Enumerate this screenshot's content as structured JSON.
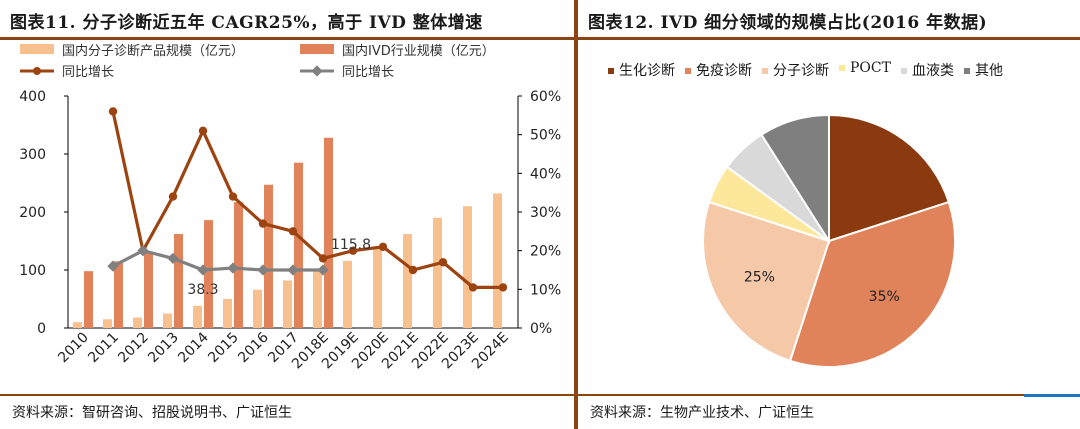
{
  "left": {
    "title": "图表11.  分子诊断近五年 CAGR25%，高于 IVD 整体增速",
    "source": "资料来源：智研咨询、招股说明书、广证恒生"
  },
  "right": {
    "title": "图表12.  IVD 细分领域的规模占比(2016 年数据)",
    "source": "资料来源：生物产业技术、广证恒生"
  },
  "colors": {
    "brand": "#8b4513",
    "accent": "#1f77c4",
    "bar_light": "#f8c08f",
    "bar_dark": "#e0835a",
    "line_brown": "#9c4310",
    "line_gray": "#808080"
  },
  "chart_data": [
    {
      "type": "bar",
      "categories": [
        "2010",
        "2011",
        "2012",
        "2013",
        "2014",
        "2015",
        "2016",
        "2017",
        "2018E",
        "2019E",
        "2020E",
        "2021E",
        "2022E",
        "2023E",
        "2024E"
      ],
      "series": [
        {
          "name": "国内分子诊断产品规模（亿元）",
          "kind": "bar",
          "axis": "left",
          "color": "#f8c08f",
          "values": [
            10,
            15,
            18,
            25,
            38.3,
            50,
            66,
            82,
            100,
            115.8,
            140,
            162,
            190,
            210,
            232
          ]
        },
        {
          "name": "国内IVD行业规模（亿元）",
          "kind": "bar",
          "axis": "left",
          "color": "#e0835a",
          "values": [
            98,
            115,
            130,
            162,
            186,
            217,
            247,
            285,
            328,
            null,
            null,
            null,
            null,
            null,
            null
          ]
        },
        {
          "name": "同比增长",
          "kind": "line",
          "axis": "right",
          "color": "#9c4310",
          "marker": "circle",
          "values": [
            null,
            56,
            20,
            34,
            51,
            34,
            27,
            25,
            18,
            20,
            21,
            15,
            17,
            10.5,
            10.5
          ]
        },
        {
          "name": "同比增长",
          "kind": "line",
          "axis": "right",
          "color": "#808080",
          "marker": "diamond",
          "values": [
            null,
            16,
            20,
            18,
            15,
            15.5,
            15,
            15,
            15,
            null,
            null,
            null,
            null,
            null,
            null
          ]
        }
      ],
      "annotations": [
        {
          "category": "2014",
          "text": "38.3"
        },
        {
          "category": "2019E",
          "text": "115.8"
        }
      ],
      "ylim": [
        0,
        400
      ],
      "yticks": [
        "0",
        "100",
        "200",
        "300",
        "400"
      ],
      "y2lim": [
        0,
        60
      ],
      "y2ticks": [
        "0%",
        "10%",
        "20%",
        "30%",
        "40%",
        "50%",
        "60%"
      ],
      "legend": "top"
    },
    {
      "type": "pie",
      "labels": [
        "生化诊断",
        "免疫诊断",
        "分子诊断",
        "POCT",
        "血液类",
        "其他"
      ],
      "values": [
        20,
        35,
        25,
        5,
        6,
        9
      ],
      "colors": [
        "#8b3a0f",
        "#e0835a",
        "#f5c8a8",
        "#fde79a",
        "#d9d9d9",
        "#7f7f7f"
      ],
      "slice_labels": [
        "",
        "35%",
        "25%",
        "",
        "",
        ""
      ],
      "legend": "top"
    }
  ]
}
